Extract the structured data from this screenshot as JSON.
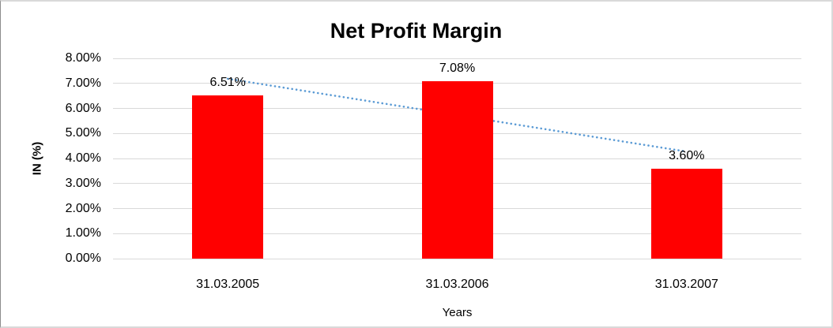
{
  "chart_data": {
    "type": "bar",
    "title": "Net Profit Margin",
    "categories": [
      "31.03.2005",
      "31.03.2006",
      "31.03.2007"
    ],
    "values": [
      6.51,
      7.08,
      3.6
    ],
    "data_labels": [
      "6.51%",
      "7.08%",
      "3.60%"
    ],
    "xlabel": "Years",
    "ylabel": "IN (%)",
    "ylim": [
      0,
      8
    ],
    "ytick_labels": [
      "0.00%",
      "1.00%",
      "2.00%",
      "3.00%",
      "4.00%",
      "5.00%",
      "6.00%",
      "7.00%",
      "8.00%"
    ],
    "grid": true,
    "legend": "none",
    "bar_color": "#FF0000",
    "gridline_color": "#D9D9D9",
    "trendline": {
      "type": "linear",
      "style": "dotted",
      "color": "#5B9BD5"
    }
  }
}
